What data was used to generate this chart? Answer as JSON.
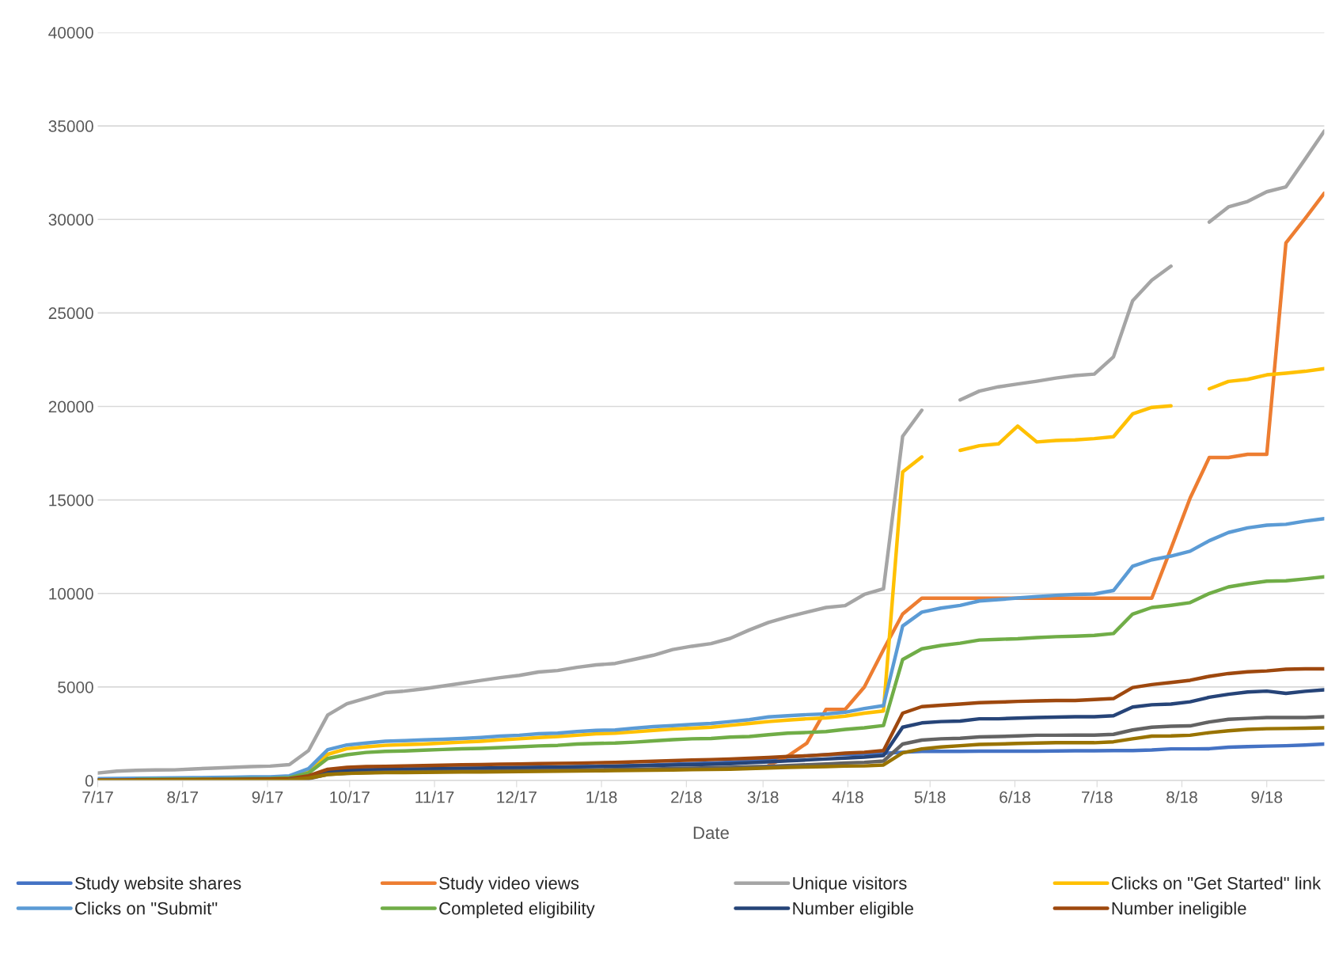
{
  "chart_data": {
    "type": "line",
    "xlabel": "Date",
    "x": [
      "2017-07-01",
      "2017-07-08",
      "2017-07-15",
      "2017-07-22",
      "2017-07-29",
      "2017-08-05",
      "2017-08-12",
      "2017-08-19",
      "2017-08-26",
      "2017-09-02",
      "2017-09-09",
      "2017-09-16",
      "2017-09-23",
      "2017-09-30",
      "2017-10-07",
      "2017-10-14",
      "2017-10-21",
      "2017-10-28",
      "2017-11-04",
      "2017-11-11",
      "2017-11-18",
      "2017-11-25",
      "2017-12-02",
      "2017-12-09",
      "2017-12-16",
      "2017-12-23",
      "2017-12-30",
      "2018-01-06",
      "2018-01-13",
      "2018-01-20",
      "2018-01-27",
      "2018-02-03",
      "2018-02-10",
      "2018-02-17",
      "2018-02-24",
      "2018-03-03",
      "2018-03-10",
      "2018-03-17",
      "2018-03-24",
      "2018-03-31",
      "2018-04-07",
      "2018-04-14",
      "2018-04-21",
      "2018-04-28",
      "2018-05-05",
      "2018-05-12",
      "2018-05-19",
      "2018-05-26",
      "2018-06-02",
      "2018-06-09",
      "2018-06-16",
      "2018-06-23",
      "2018-06-30",
      "2018-07-07",
      "2018-07-14",
      "2018-07-21",
      "2018-07-28",
      "2018-08-04",
      "2018-08-11",
      "2018-08-18",
      "2018-08-25",
      "2018-09-01",
      "2018-09-08",
      "2018-09-15",
      "2018-09-22"
    ],
    "series": [
      {
        "name": "Study website shares",
        "color": "#4472c4",
        "values": [
          50,
          50,
          60,
          60,
          70,
          70,
          80,
          80,
          90,
          100,
          110,
          200,
          480,
          550,
          580,
          600,
          610,
          620,
          640,
          650,
          660,
          680,
          690,
          700,
          710,
          730,
          750,
          770,
          800,
          830,
          870,
          900,
          940,
          980,
          1050,
          1150,
          1250,
          1320,
          1380,
          1400,
          1420,
          1450,
          1510,
          1560,
          1560,
          1560,
          1570,
          1570,
          1570,
          1570,
          1580,
          1590,
          1590,
          1600,
          1600,
          1630,
          1690,
          1690,
          1700,
          1780,
          1810,
          1840,
          1860,
          1900,
          1950
        ]
      },
      {
        "name": "Study video views",
        "color": "#ed7d31",
        "values": [
          null,
          null,
          null,
          null,
          null,
          null,
          null,
          null,
          null,
          null,
          null,
          null,
          null,
          null,
          null,
          null,
          null,
          null,
          null,
          null,
          null,
          null,
          null,
          null,
          null,
          null,
          null,
          null,
          null,
          null,
          null,
          null,
          null,
          null,
          null,
          800,
          1300,
          2000,
          3800,
          3800,
          5000,
          7000,
          8900,
          9750,
          9750,
          9750,
          9750,
          9750,
          9750,
          9750,
          9750,
          9750,
          9750,
          9750,
          9750,
          9750,
          12400,
          15100,
          17270,
          17270,
          17440,
          17440,
          28750,
          30050,
          31400
        ]
      },
      {
        "name": "Unique visitors",
        "color": "#a5a5a5",
        "values": [
          400,
          500,
          540,
          560,
          570,
          620,
          660,
          700,
          740,
          770,
          850,
          1600,
          3500,
          4100,
          4400,
          4700,
          4780,
          4900,
          5050,
          5200,
          5350,
          5500,
          5620,
          5800,
          5880,
          6050,
          6180,
          6260,
          6480,
          6700,
          7000,
          7180,
          7320,
          7600,
          8050,
          8450,
          8750,
          9000,
          9250,
          9350,
          9950,
          10250,
          18400,
          19800,
          null,
          20350,
          20820,
          21050,
          21200,
          21350,
          21520,
          21650,
          21730,
          22650,
          25650,
          26750,
          27500,
          null,
          29860,
          30670,
          30960,
          31480,
          31740,
          33220,
          34720
        ]
      },
      {
        "name": "Clicks on \"Get Started\" link",
        "color": "#ffc000",
        "values": [
          null,
          null,
          null,
          null,
          null,
          null,
          null,
          null,
          null,
          null,
          220,
          500,
          1400,
          1700,
          1800,
          1880,
          1920,
          1950,
          2000,
          2050,
          2100,
          2170,
          2230,
          2300,
          2350,
          2420,
          2500,
          2530,
          2600,
          2680,
          2750,
          2800,
          2850,
          2950,
          3050,
          3150,
          3230,
          3300,
          3350,
          3440,
          3600,
          3720,
          16500,
          17300,
          null,
          17650,
          17900,
          18000,
          18950,
          18100,
          18180,
          18210,
          18280,
          18380,
          19600,
          19950,
          20030,
          null,
          20940,
          21340,
          21450,
          21690,
          21780,
          21880,
          22020
        ]
      },
      {
        "name": "Clicks on \"Submit\"",
        "color": "#5b9bd5",
        "values": [
          100,
          110,
          120,
          130,
          140,
          150,
          160,
          170,
          190,
          200,
          250,
          630,
          1650,
          1900,
          2000,
          2100,
          2130,
          2170,
          2200,
          2250,
          2300,
          2370,
          2420,
          2500,
          2530,
          2620,
          2680,
          2700,
          2800,
          2880,
          2930,
          3000,
          3050,
          3150,
          3250,
          3400,
          3460,
          3520,
          3560,
          3650,
          3850,
          4000,
          8260,
          9000,
          9220,
          9360,
          9600,
          9670,
          9760,
          9830,
          9900,
          9950,
          9970,
          10160,
          11460,
          11800,
          12000,
          12260,
          12820,
          13260,
          13510,
          13650,
          13700,
          13870,
          14000
        ]
      },
      {
        "name": "Completed eligibility",
        "color": "#70ad47",
        "values": [
          null,
          null,
          60,
          70,
          70,
          80,
          80,
          90,
          100,
          110,
          150,
          400,
          1180,
          1380,
          1500,
          1560,
          1580,
          1620,
          1660,
          1700,
          1720,
          1760,
          1800,
          1850,
          1880,
          1950,
          1980,
          2000,
          2050,
          2120,
          2180,
          2230,
          2250,
          2320,
          2350,
          2450,
          2530,
          2570,
          2620,
          2730,
          2820,
          2940,
          6470,
          7040,
          7220,
          7340,
          7510,
          7550,
          7580,
          7640,
          7690,
          7720,
          7760,
          7860,
          8900,
          9250,
          9370,
          9510,
          10000,
          10350,
          10520,
          10660,
          10680,
          10780,
          10890
        ]
      },
      {
        "name": "Number eligible",
        "color": "#264478",
        "values": [
          null,
          null,
          null,
          null,
          null,
          null,
          50,
          50,
          60,
          60,
          80,
          150,
          450,
          530,
          560,
          600,
          610,
          620,
          640,
          650,
          660,
          680,
          690,
          700,
          710,
          730,
          750,
          770,
          790,
          810,
          830,
          850,
          870,
          900,
          950,
          1000,
          1050,
          1100,
          1150,
          1200,
          1250,
          1340,
          2850,
          3080,
          3150,
          3180,
          3300,
          3300,
          3340,
          3370,
          3390,
          3410,
          3410,
          3460,
          3930,
          4050,
          4090,
          4210,
          4450,
          4610,
          4730,
          4780,
          4660,
          4770,
          4850
        ]
      },
      {
        "name": "Number ineligible",
        "color": "#9e480e",
        "values": [
          30,
          30,
          40,
          40,
          50,
          50,
          60,
          60,
          70,
          80,
          100,
          250,
          600,
          700,
          740,
          760,
          780,
          800,
          820,
          840,
          850,
          870,
          880,
          900,
          910,
          930,
          950,
          970,
          1000,
          1030,
          1060,
          1090,
          1120,
          1150,
          1190,
          1230,
          1280,
          1320,
          1380,
          1460,
          1510,
          1600,
          3600,
          3950,
          4020,
          4090,
          4160,
          4190,
          4230,
          4260,
          4280,
          4280,
          4330,
          4380,
          4970,
          5130,
          5240,
          5360,
          5570,
          5720,
          5810,
          5860,
          5950,
          5970,
          5970
        ]
      },
      {
        "color": "#636363",
        "values": [
          null,
          null,
          null,
          null,
          null,
          null,
          null,
          null,
          null,
          null,
          50,
          100,
          330,
          380,
          420,
          450,
          460,
          470,
          480,
          490,
          500,
          510,
          520,
          530,
          540,
          550,
          570,
          590,
          600,
          620,
          640,
          660,
          680,
          700,
          730,
          760,
          800,
          840,
          880,
          940,
          970,
          1040,
          1950,
          2160,
          2230,
          2260,
          2330,
          2350,
          2380,
          2420,
          2420,
          2430,
          2430,
          2470,
          2700,
          2850,
          2900,
          2920,
          3130,
          3270,
          3320,
          3370,
          3370,
          3370,
          3410
        ]
      },
      {
        "color": "#997300",
        "values": [
          0,
          0,
          0,
          0,
          10,
          10,
          10,
          10,
          20,
          20,
          30,
          130,
          320,
          380,
          400,
          420,
          430,
          440,
          450,
          460,
          460,
          470,
          480,
          490,
          500,
          510,
          520,
          530,
          540,
          550,
          560,
          580,
          590,
          610,
          640,
          670,
          700,
          720,
          740,
          770,
          780,
          830,
          1480,
          1690,
          1790,
          1860,
          1930,
          1950,
          1980,
          2000,
          2020,
          2020,
          2020,
          2070,
          2230,
          2370,
          2380,
          2420,
          2560,
          2660,
          2730,
          2770,
          2780,
          2800,
          2820
        ]
      }
    ],
    "xlim": [
      "2017-07-01",
      "2018-09-22"
    ],
    "xticks": [
      {
        "value": "2017-07-01",
        "label": "7/17"
      },
      {
        "value": "2017-08-01",
        "label": "8/17"
      },
      {
        "value": "2017-09-01",
        "label": "9/17"
      },
      {
        "value": "2017-10-01",
        "label": "10/17"
      },
      {
        "value": "2017-11-01",
        "label": "11/17"
      },
      {
        "value": "2017-12-01",
        "label": "12/17"
      },
      {
        "value": "2018-01-01",
        "label": "1/18"
      },
      {
        "value": "2018-02-01",
        "label": "2/18"
      },
      {
        "value": "2018-03-01",
        "label": "3/18"
      },
      {
        "value": "2018-04-01",
        "label": "4/18"
      },
      {
        "value": "2018-05-01",
        "label": "5/18"
      },
      {
        "value": "2018-06-01",
        "label": "6/18"
      },
      {
        "value": "2018-07-01",
        "label": "7/18"
      },
      {
        "value": "2018-08-01",
        "label": "8/18"
      },
      {
        "value": "2018-09-01",
        "label": "9/18"
      }
    ],
    "ylim": [
      0,
      40000
    ],
    "yticks": [
      0,
      5000,
      10000,
      15000,
      20000,
      25000,
      30000,
      35000,
      40000
    ],
    "grid": "y",
    "legend": "bottom",
    "marker": "none",
    "line_style": "solid"
  }
}
